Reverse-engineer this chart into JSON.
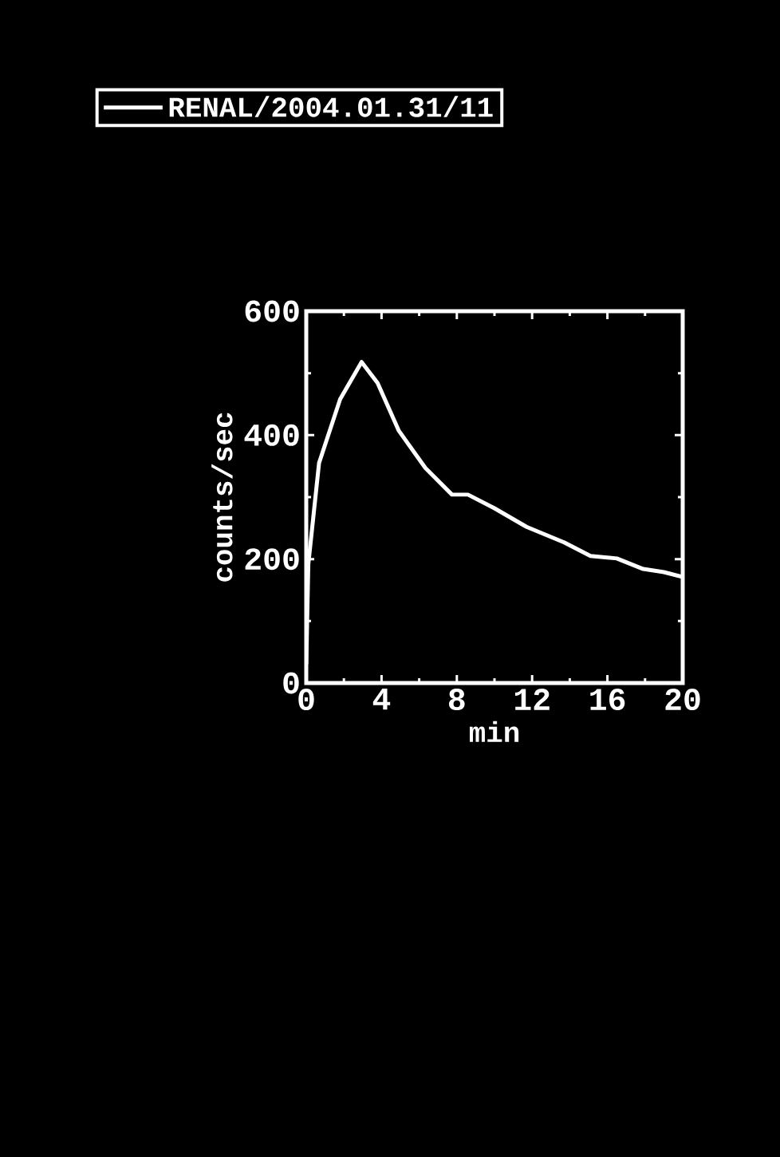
{
  "chart_data": {
    "type": "line",
    "xlabel": "min",
    "ylabel": "counts/sec",
    "series": [
      {
        "name": "RENAL/2004.01.31/11",
        "color": "#ffffff",
        "x": [
          0,
          0.11,
          0.68,
          1.8,
          2.94,
          3.79,
          4.92,
          6.33,
          7.74,
          8.59,
          10.0,
          11.7,
          13.7,
          15.1,
          16.5,
          17.9,
          19.0,
          20.0
        ],
        "values": [
          30,
          192,
          355,
          458,
          518,
          484,
          407,
          347,
          304,
          304,
          282,
          252,
          227,
          205,
          201,
          184,
          179,
          171
        ]
      }
    ],
    "xlim": [
      0,
      20
    ],
    "ylim": [
      0,
      600
    ],
    "xticks": [
      0,
      4,
      8,
      12,
      16,
      20
    ],
    "yticks": [
      0,
      200,
      400,
      600
    ],
    "legend": "top",
    "grid": false,
    "marker": "none",
    "line_style": "solid"
  }
}
